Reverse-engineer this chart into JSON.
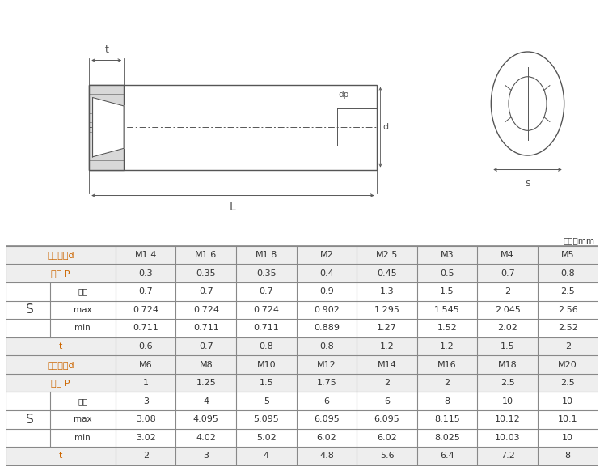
{
  "unit_label": "单位：mm",
  "orange_color": "#cc6600",
  "text_color": "#333333",
  "gray_color": "#555555",
  "rows": [
    [
      "螺纹规格d",
      "M1.4",
      "M1.6",
      "M1.8",
      "M2",
      "M2.5",
      "M3",
      "M4",
      "M5"
    ],
    [
      "螺距 P",
      "0.3",
      "0.35",
      "0.35",
      "0.4",
      "0.45",
      "0.5",
      "0.7",
      "0.8"
    ],
    [
      "公称",
      "0.7",
      "0.7",
      "0.7",
      "0.9",
      "1.3",
      "1.5",
      "2",
      "2.5"
    ],
    [
      "max",
      "0.724",
      "0.724",
      "0.724",
      "0.902",
      "1.295",
      "1.545",
      "2.045",
      "2.56"
    ],
    [
      "min",
      "0.711",
      "0.711",
      "0.711",
      "0.889",
      "1.27",
      "1.52",
      "2.02",
      "2.52"
    ],
    [
      "t",
      "0.6",
      "0.7",
      "0.8",
      "0.8",
      "1.2",
      "1.2",
      "1.5",
      "2"
    ],
    [
      "螺纹规格d",
      "M6",
      "M8",
      "M10",
      "M12",
      "M14",
      "M16",
      "M18",
      "M20"
    ],
    [
      "螺距 P",
      "1",
      "1.25",
      "1.5",
      "1.75",
      "2",
      "2",
      "2.5",
      "2.5"
    ],
    [
      "公称",
      "3",
      "4",
      "5",
      "6",
      "6",
      "8",
      "10",
      "10"
    ],
    [
      "max",
      "3.08",
      "4.095",
      "5.095",
      "6.095",
      "6.095",
      "8.115",
      "10.12",
      "10.1"
    ],
    [
      "min",
      "3.02",
      "4.02",
      "5.02",
      "6.02",
      "6.02",
      "8.025",
      "10.03",
      "10"
    ],
    [
      "t",
      "2",
      "3",
      "4",
      "4.8",
      "5.6",
      "6.4",
      "7.2",
      "8"
    ]
  ],
  "S_label": "S",
  "header_row_indices": [
    0,
    1,
    5,
    6,
    7,
    11
  ],
  "s_group1": [
    2,
    3,
    4
  ],
  "s_group2": [
    8,
    9,
    10
  ],
  "figsize": [
    7.47,
    5.82
  ],
  "dpi": 100
}
